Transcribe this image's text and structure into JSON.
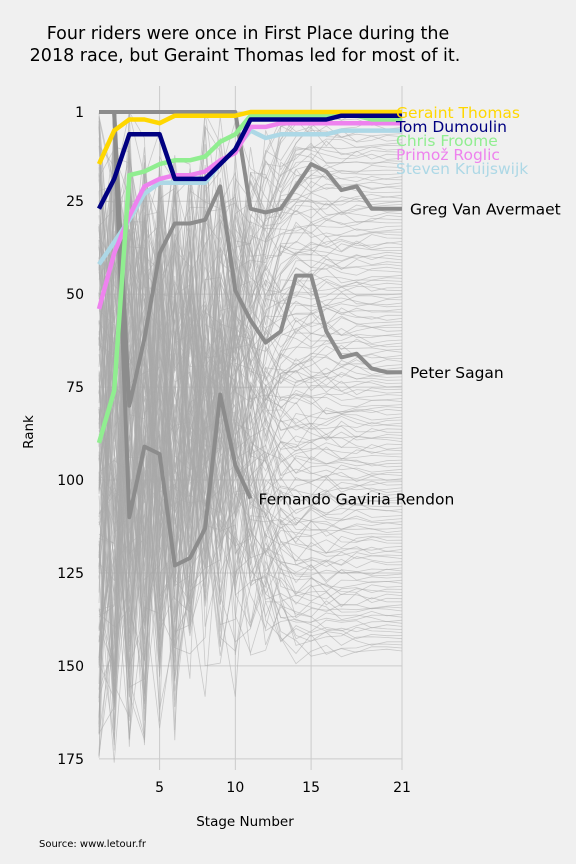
{
  "chart_data": {
    "type": "line",
    "title_line1": "Four riders were once in First Place during the",
    "title_line2": "2018 race, but Geraint Thomas led for most of it.",
    "xlabel": "Stage Number",
    "ylabel": "Rank",
    "source": "Source: www.letour.fr",
    "xlim": [
      1,
      21
    ],
    "ylim": [
      178,
      -6
    ],
    "y_inverted": true,
    "x_ticks": [
      5,
      10,
      15,
      21
    ],
    "y_ticks": [
      1,
      25,
      50,
      75,
      100,
      125,
      150,
      175
    ],
    "grid": true,
    "background_color": "#f0f0f0",
    "x": [
      1,
      2,
      3,
      4,
      5,
      6,
      7,
      8,
      9,
      10,
      11,
      12,
      13,
      14,
      15,
      16,
      17,
      18,
      19,
      20,
      21
    ],
    "highlighted": [
      {
        "name": "Geraint Thomas",
        "color": "#ffd700",
        "values": [
          15,
          6,
          3,
          3,
          4,
          2,
          2,
          2,
          2,
          2,
          1,
          1,
          1,
          1,
          1,
          1,
          1,
          1,
          1,
          1,
          1
        ]
      },
      {
        "name": "Tom Dumoulin",
        "color": "#000080",
        "values": [
          27,
          19,
          7,
          7,
          7,
          19,
          19,
          19,
          15,
          11,
          3,
          3,
          3,
          3,
          3,
          3,
          2,
          2,
          2,
          2,
          2
        ]
      },
      {
        "name": "Chris Froome",
        "color": "#90ee90",
        "values": [
          90,
          76,
          18,
          17,
          15,
          14,
          14,
          13,
          9,
          7,
          2,
          2,
          2,
          2,
          2,
          2,
          2,
          2,
          3,
          3,
          3
        ]
      },
      {
        "name": "Primož Roglic",
        "color": "#ee82ee",
        "values": [
          54,
          39,
          29,
          21,
          19,
          18,
          18,
          17,
          14,
          12,
          5,
          5,
          4,
          4,
          4,
          4,
          4,
          4,
          4,
          4,
          4
        ]
      },
      {
        "name": "Steven Kruijswijk",
        "color": "#add8e6",
        "values": [
          42,
          36,
          30,
          23,
          20,
          20,
          20,
          20,
          15,
          11,
          6,
          8,
          7,
          7,
          7,
          7,
          6,
          6,
          6,
          6,
          6
        ]
      }
    ],
    "notable": [
      {
        "name": "Greg Van Avermaet",
        "values": [
          1,
          1,
          1,
          1,
          1,
          1,
          1,
          1,
          1,
          1,
          27,
          28,
          27,
          21,
          15,
          17,
          22,
          21,
          27,
          27,
          27
        ]
      },
      {
        "name": "Peter Sagan",
        "values": [
          1,
          1,
          80,
          62,
          39,
          31,
          31,
          30,
          21,
          49,
          57,
          63,
          60,
          45,
          45,
          60,
          67,
          66,
          70,
          71,
          71
        ]
      },
      {
        "name": "Fernando Gaviria Rendon",
        "values": [
          1,
          1,
          110,
          91,
          93,
          123,
          121,
          113,
          77,
          96,
          105
        ]
      }
    ],
    "background_riders": {
      "count": 176,
      "color": "#aaaaaa"
    }
  }
}
